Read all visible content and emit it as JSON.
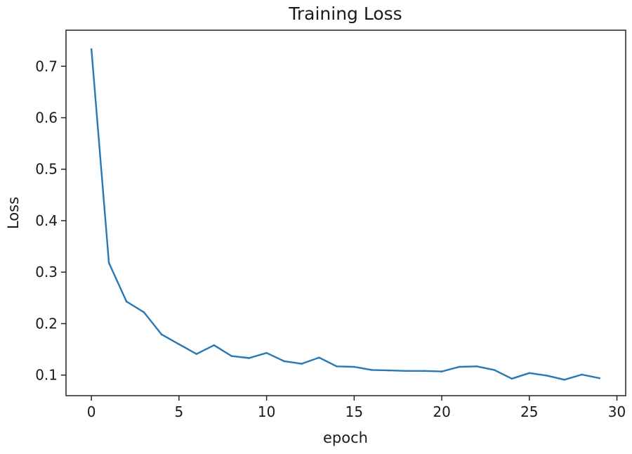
{
  "chart_data": {
    "type": "line",
    "title": "Training Loss",
    "xlabel": "epoch",
    "ylabel": "Loss",
    "xlim": [
      -1.45,
      30.5
    ],
    "ylim": [
      0.06,
      0.77
    ],
    "xticks": [
      0,
      5,
      10,
      15,
      20,
      25,
      30
    ],
    "yticks": [
      0.1,
      0.2,
      0.3,
      0.4,
      0.5,
      0.6,
      0.7
    ],
    "grid": false,
    "legend": "none",
    "series": [
      {
        "color": "#2878b5",
        "x": [
          0,
          1,
          2,
          3,
          4,
          5,
          6,
          7,
          8,
          9,
          10,
          11,
          12,
          13,
          14,
          15,
          16,
          17,
          18,
          19,
          20,
          21,
          22,
          23,
          24,
          25,
          26,
          27,
          28,
          29
        ],
        "y": [
          0.733,
          0.318,
          0.243,
          0.222,
          0.179,
          0.16,
          0.141,
          0.158,
          0.137,
          0.133,
          0.143,
          0.127,
          0.122,
          0.134,
          0.117,
          0.116,
          0.11,
          0.109,
          0.108,
          0.108,
          0.107,
          0.116,
          0.117,
          0.11,
          0.093,
          0.104,
          0.099,
          0.091,
          0.101,
          0.094
        ]
      }
    ]
  }
}
